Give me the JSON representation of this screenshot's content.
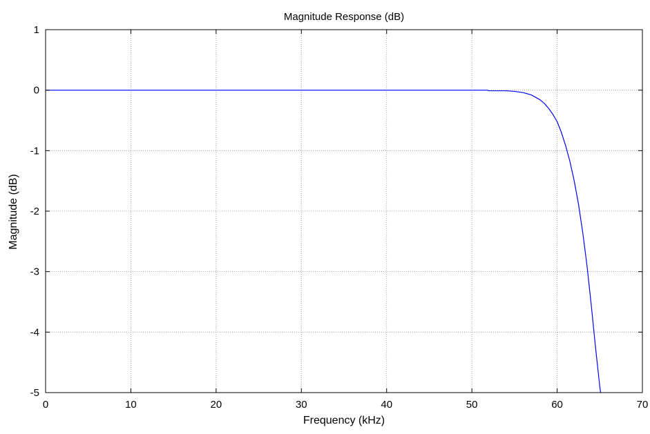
{
  "chart_data": {
    "type": "line",
    "title": "Magnitude Response (dB)",
    "xlabel": "Frequency (kHz)",
    "ylabel": "Magnitude (dB)",
    "xlim": [
      0,
      70
    ],
    "ylim": [
      -5,
      1
    ],
    "xticks": [
      0,
      10,
      20,
      30,
      40,
      50,
      60,
      70
    ],
    "yticks": [
      1,
      0,
      -1,
      -2,
      -3,
      -4,
      -5
    ],
    "xtick_labels": [
      "0",
      "10",
      "20",
      "30",
      "40",
      "50",
      "60",
      "70"
    ],
    "ytick_labels": [
      "1",
      "0",
      "-1",
      "-2",
      "-3",
      "-4",
      "-5"
    ],
    "grid": true,
    "series": [
      {
        "color": "#0000ff",
        "x": [
          0,
          10,
          20,
          30,
          40,
          50,
          51.8,
          52,
          54,
          55,
          56,
          57,
          58,
          58.5,
          59,
          59.5,
          60,
          60.5,
          61,
          61.5,
          62,
          62.5,
          63,
          63.5,
          64,
          64.5,
          65,
          65.1
        ],
        "y": [
          0,
          0,
          0,
          0,
          0,
          0,
          0,
          -0.01,
          -0.01,
          -0.02,
          -0.04,
          -0.08,
          -0.16,
          -0.22,
          -0.3,
          -0.4,
          -0.52,
          -0.7,
          -0.92,
          -1.18,
          -1.5,
          -1.88,
          -2.35,
          -2.9,
          -3.55,
          -4.25,
          -4.9,
          -5
        ]
      }
    ]
  }
}
